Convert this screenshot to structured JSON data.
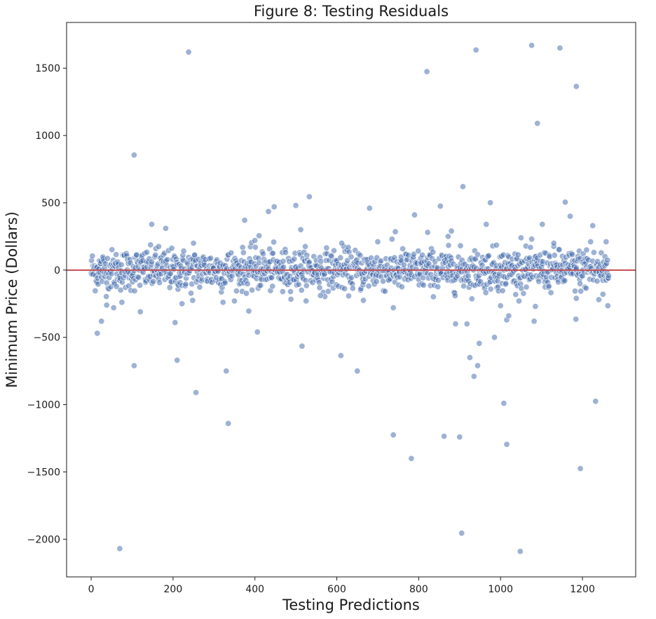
{
  "chart_data": {
    "type": "scatter",
    "title": "Figure 8: Testing Residuals",
    "xlabel": "Testing Predictions",
    "ylabel": "Minimum Price (Dollars)",
    "xlim": [
      -60,
      1330
    ],
    "ylim": [
      -2280,
      1840
    ],
    "xticks": [
      0,
      200,
      400,
      600,
      800,
      1000,
      1200
    ],
    "yticks": [
      -2000,
      -1500,
      -1000,
      -500,
      0,
      500,
      1000,
      1500
    ],
    "ytick_labels": [
      "−2000",
      "−1500",
      "−1000",
      "−500",
      "0",
      "500",
      "1000",
      "1500"
    ],
    "reference_line": {
      "y": 0,
      "color": "#c44e52"
    },
    "point_color": "#4c72b0",
    "grid": false,
    "n_points": 1265,
    "noise_std": 75,
    "outliers": [
      [
        70,
        -2070
      ],
      [
        105,
        855
      ],
      [
        105,
        -710
      ],
      [
        120,
        -310
      ],
      [
        15,
        -470
      ],
      [
        25,
        -380
      ],
      [
        38,
        -260
      ],
      [
        55,
        -280
      ],
      [
        75,
        -240
      ],
      [
        205,
        -390
      ],
      [
        210,
        -670
      ],
      [
        222,
        -250
      ],
      [
        238,
        1620
      ],
      [
        248,
        -225
      ],
      [
        256,
        -910
      ],
      [
        148,
        340
      ],
      [
        182,
        310
      ],
      [
        322,
        -240
      ],
      [
        330,
        -750
      ],
      [
        335,
        -1140
      ],
      [
        375,
        370
      ],
      [
        385,
        -305
      ],
      [
        400,
        220
      ],
      [
        410,
        255
      ],
      [
        420,
        120
      ],
      [
        433,
        435
      ],
      [
        447,
        470
      ],
      [
        468,
        -160
      ],
      [
        406,
        -460
      ],
      [
        500,
        480
      ],
      [
        512,
        300
      ],
      [
        515,
        -565
      ],
      [
        533,
        545
      ],
      [
        560,
        -190
      ],
      [
        612,
        200
      ],
      [
        610,
        -635
      ],
      [
        650,
        -750
      ],
      [
        665,
        -225
      ],
      [
        680,
        460
      ],
      [
        738,
        -1225
      ],
      [
        738,
        -280
      ],
      [
        743,
        285
      ],
      [
        782,
        -1400
      ],
      [
        790,
        410
      ],
      [
        820,
        1475
      ],
      [
        822,
        280
      ],
      [
        853,
        475
      ],
      [
        862,
        -1235
      ],
      [
        872,
        250
      ],
      [
        880,
        290
      ],
      [
        890,
        -400
      ],
      [
        900,
        -1240
      ],
      [
        905,
        -1955
      ],
      [
        908,
        620
      ],
      [
        918,
        -400
      ],
      [
        925,
        -650
      ],
      [
        935,
        -790
      ],
      [
        940,
        1635
      ],
      [
        944,
        -710
      ],
      [
        948,
        -545
      ],
      [
        965,
        340
      ],
      [
        975,
        500
      ],
      [
        985,
        -500
      ],
      [
        1000,
        -265
      ],
      [
        1008,
        -990
      ],
      [
        1015,
        -1295
      ],
      [
        1015,
        -370
      ],
      [
        1020,
        -340
      ],
      [
        1048,
        -2090
      ],
      [
        1076,
        1670
      ],
      [
        1082,
        -380
      ],
      [
        1085,
        -270
      ],
      [
        1090,
        1090
      ],
      [
        1102,
        340
      ],
      [
        1145,
        1650
      ],
      [
        1158,
        505
      ],
      [
        1170,
        400
      ],
      [
        1185,
        1365
      ],
      [
        1184,
        -365
      ],
      [
        1185,
        -210
      ],
      [
        1195,
        -1475
      ],
      [
        1210,
        150
      ],
      [
        1220,
        210
      ],
      [
        1225,
        330
      ],
      [
        1232,
        -975
      ],
      [
        1240,
        -220
      ],
      [
        1250,
        -180
      ],
      [
        1258,
        210
      ],
      [
        1262,
        -265
      ],
      [
        1130,
        200
      ],
      [
        990,
        185
      ],
      [
        1050,
        240
      ],
      [
        700,
        210
      ],
      [
        250,
        200
      ],
      [
        165,
        175
      ]
    ]
  }
}
